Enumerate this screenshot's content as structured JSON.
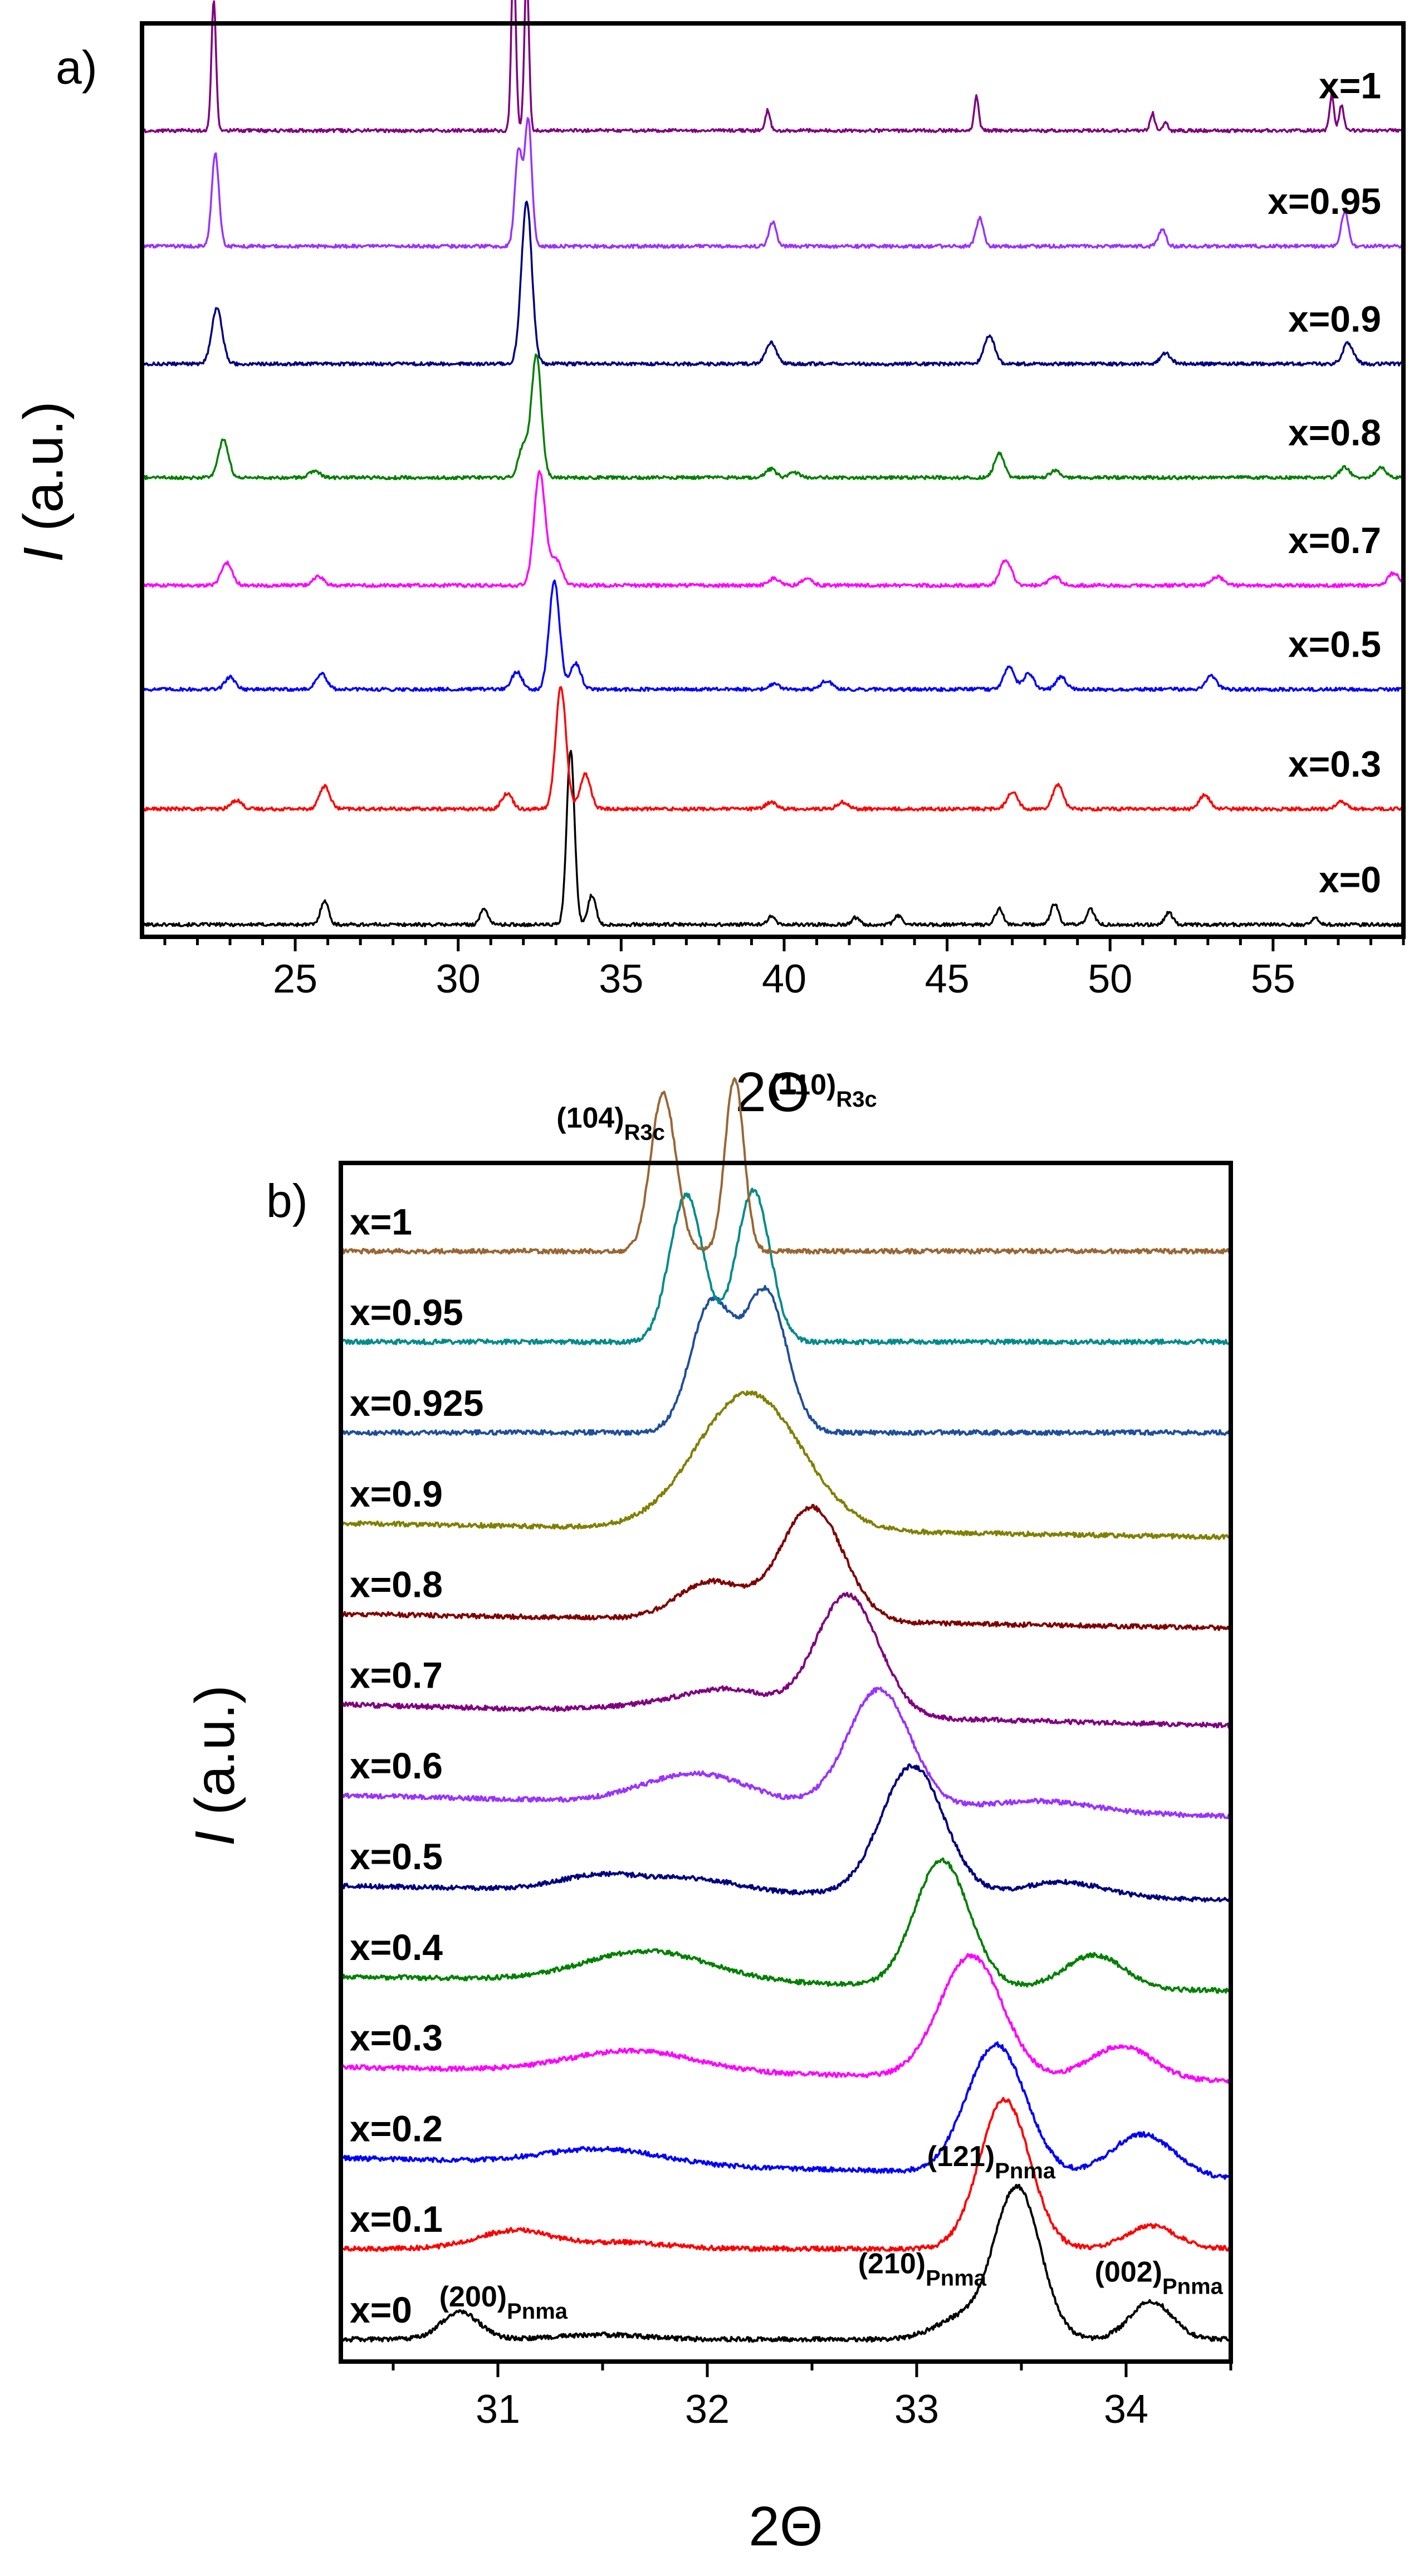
{
  "chart_data": [
    {
      "panel": "a)",
      "type": "line",
      "xlabel": "2Θ",
      "ylabel": "I (a.u.)",
      "xlim": [
        20.3,
        59.0
      ],
      "x_ticks": [
        25,
        30,
        35,
        40,
        45,
        50,
        55
      ],
      "stacked": true,
      "series": [
        {
          "name": "x=0",
          "color": "#000000",
          "offset": 0.0,
          "peaks": [
            [
              25.9,
              0.14
            ],
            [
              30.8,
              0.09
            ],
            [
              33.45,
              1.0
            ],
            [
              34.1,
              0.17
            ],
            [
              39.6,
              0.045
            ],
            [
              42.2,
              0.04
            ],
            [
              43.5,
              0.05
            ],
            [
              46.6,
              0.09
            ],
            [
              48.3,
              0.12
            ],
            [
              49.4,
              0.09
            ],
            [
              51.8,
              0.07
            ],
            [
              56.3,
              0.04
            ]
          ],
          "width": 0.12
        },
        {
          "name": "x=0.3",
          "color": "#ff0000",
          "offset": 1.18,
          "peaks": [
            [
              23.2,
              0.05
            ],
            [
              25.9,
              0.13
            ],
            [
              31.5,
              0.09
            ],
            [
              33.15,
              0.7
            ],
            [
              33.9,
              0.2
            ],
            [
              39.6,
              0.04
            ],
            [
              41.8,
              0.04
            ],
            [
              47.0,
              0.1
            ],
            [
              48.4,
              0.14
            ],
            [
              52.9,
              0.08
            ],
            [
              57.1,
              0.04
            ]
          ],
          "width": 0.16
        },
        {
          "name": "x=0.5",
          "color": "#0000ff",
          "offset": 2.4,
          "peaks": [
            [
              23.0,
              0.07
            ],
            [
              25.8,
              0.09
            ],
            [
              31.8,
              0.1
            ],
            [
              32.95,
              0.62
            ],
            [
              33.6,
              0.15
            ],
            [
              39.7,
              0.03
            ],
            [
              41.3,
              0.05
            ],
            [
              46.9,
              0.13
            ],
            [
              47.5,
              0.09
            ],
            [
              48.5,
              0.07
            ],
            [
              53.1,
              0.08
            ]
          ],
          "width": 0.16
        },
        {
          "name": "x=0.7",
          "color": "#ff00ff",
          "offset": 3.46,
          "peaks": [
            [
              22.9,
              0.13
            ],
            [
              25.7,
              0.05
            ],
            [
              32.5,
              0.65
            ],
            [
              33.0,
              0.15
            ],
            [
              39.7,
              0.04
            ],
            [
              40.7,
              0.04
            ],
            [
              46.8,
              0.15
            ],
            [
              48.3,
              0.05
            ],
            [
              53.3,
              0.05
            ],
            [
              58.7,
              0.07
            ]
          ],
          "width": 0.17
        },
        {
          "name": "x=0.8",
          "color": "#008000",
          "offset": 4.56,
          "peaks": [
            [
              22.8,
              0.22
            ],
            [
              25.6,
              0.04
            ],
            [
              32.0,
              0.18
            ],
            [
              32.4,
              0.7
            ],
            [
              39.6,
              0.05
            ],
            [
              40.3,
              0.03
            ],
            [
              46.6,
              0.14
            ],
            [
              48.3,
              0.04
            ],
            [
              57.2,
              0.06
            ],
            [
              58.3,
              0.06
            ]
          ],
          "width": 0.15
        },
        {
          "name": "x=0.9",
          "color": "#000080",
          "offset": 5.72,
          "peaks": [
            [
              22.6,
              0.32
            ],
            [
              32.1,
              0.93
            ],
            [
              39.6,
              0.12
            ],
            [
              46.3,
              0.16
            ],
            [
              51.7,
              0.06
            ],
            [
              57.3,
              0.12
            ]
          ],
          "width": 0.16
        },
        {
          "name": "x=0.95",
          "color": "#9933ff",
          "offset": 6.92,
          "peaks": [
            [
              22.55,
              0.53
            ],
            [
              31.85,
              0.55
            ],
            [
              32.15,
              0.72
            ],
            [
              39.65,
              0.14
            ],
            [
              46.0,
              0.16
            ],
            [
              51.6,
              0.1
            ],
            [
              57.2,
              0.2
            ]
          ],
          "width": 0.11
        },
        {
          "name": "x=1",
          "color": "#800080",
          "offset": 8.1,
          "peaks": [
            [
              22.5,
              0.75
            ],
            [
              31.7,
              1.0
            ],
            [
              32.1,
              0.9
            ],
            [
              39.5,
              0.12
            ],
            [
              45.9,
              0.2
            ],
            [
              51.3,
              0.1
            ],
            [
              51.7,
              0.05
            ],
            [
              56.8,
              0.2
            ],
            [
              57.1,
              0.15
            ]
          ],
          "width": 0.07
        }
      ]
    },
    {
      "panel": "b)",
      "type": "line",
      "xlabel": "2Θ",
      "ylabel": "I (a.u.)",
      "xlim": [
        30.25,
        34.5
      ],
      "x_ticks": [
        31,
        32,
        33,
        34
      ],
      "stacked": true,
      "annotations": [
        {
          "main": "(104)",
          "sub": "R3c",
          "x": 31.28,
          "y": 7.35
        },
        {
          "main": "(110)",
          "sub": "R3c",
          "x": 32.3,
          "y": 7.55
        },
        {
          "main": "(121)",
          "sub": "Pnma",
          "x": 33.05,
          "y": 1.05
        },
        {
          "main": "(200)",
          "sub": "Pnma",
          "x": 30.72,
          "y": 0.2
        },
        {
          "main": "(210)",
          "sub": "Pnma",
          "x": 32.72,
          "y": 0.4
        },
        {
          "main": "(002)",
          "sub": "Pnma",
          "x": 33.85,
          "y": 0.35
        }
      ],
      "series": [
        {
          "name": "x=0",
          "color": "#000000",
          "offset": 0.0,
          "peaks": [
            [
              30.82,
              0.18,
              0.09
            ],
            [
              31.5,
              0.03,
              0.2
            ],
            [
              33.2,
              0.13,
              0.12
            ],
            [
              33.48,
              1.0,
              0.11
            ],
            [
              34.12,
              0.25,
              0.1
            ]
          ],
          "base_slope": 0.0
        },
        {
          "name": "x=0.1",
          "color": "#ff0000",
          "offset": 0.55,
          "peaks": [
            [
              31.08,
              0.12,
              0.18
            ],
            [
              31.6,
              0.04,
              0.2
            ],
            [
              33.42,
              0.98,
              0.12
            ],
            [
              34.12,
              0.15,
              0.12
            ]
          ],
          "base_slope": 0.0
        },
        {
          "name": "x=0.2",
          "color": "#0000ff",
          "offset": 1.1,
          "peaks": [
            [
              31.5,
              0.1,
              0.28
            ],
            [
              33.38,
              0.85,
              0.14
            ],
            [
              34.08,
              0.28,
              0.15
            ]
          ],
          "base_slope": -0.03
        },
        {
          "name": "x=0.3",
          "color": "#ff00ff",
          "offset": 1.65,
          "peaks": [
            [
              31.65,
              0.14,
              0.3
            ],
            [
              33.26,
              0.8,
              0.15
            ],
            [
              33.98,
              0.22,
              0.15
            ]
          ],
          "base_slope": -0.02
        },
        {
          "name": "x=0.4",
          "color": "#008000",
          "offset": 2.2,
          "peaks": [
            [
              31.72,
              0.2,
              0.3
            ],
            [
              33.12,
              0.83,
              0.13
            ],
            [
              33.85,
              0.22,
              0.14
            ]
          ],
          "base_slope": -0.02
        },
        {
          "name": "x=0.5",
          "color": "#000080",
          "offset": 2.75,
          "peaks": [
            [
              31.5,
              0.1,
              0.2
            ],
            [
              31.95,
              0.08,
              0.2
            ],
            [
              32.98,
              0.85,
              0.15
            ],
            [
              33.7,
              0.1,
              0.2
            ]
          ],
          "base_slope": -0.02
        },
        {
          "name": "x=0.6",
          "color": "#9933ff",
          "offset": 3.3,
          "peaks": [
            [
              31.95,
              0.2,
              0.25
            ],
            [
              32.82,
              0.78,
              0.15
            ],
            [
              33.6,
              0.07,
              0.25
            ]
          ],
          "base_slope": -0.03
        },
        {
          "name": "x=0.7",
          "color": "#800080",
          "offset": 3.85,
          "peaks": [
            [
              31.8,
              0.05,
              0.25
            ],
            [
              32.12,
              0.14,
              0.2
            ],
            [
              32.67,
              0.8,
              0.15
            ]
          ],
          "base_slope": -0.03
        },
        {
          "name": "x=0.8",
          "color": "#800000",
          "offset": 4.4,
          "peaks": [
            [
              32.02,
              0.25,
              0.16
            ],
            [
              32.5,
              0.75,
              0.15
            ]
          ],
          "base_slope": -0.02
        },
        {
          "name": "x=0.9",
          "color": "#808000",
          "offset": 4.95,
          "peaks": [
            [
              32.2,
              0.9,
              0.25
            ]
          ],
          "base_slope": -0.02
        },
        {
          "name": "x=0.925",
          "color": "#1f4e9b",
          "offset": 5.5,
          "peaks": [
            [
              32.02,
              0.85,
              0.1
            ],
            [
              32.28,
              0.92,
              0.1
            ]
          ],
          "base_slope": 0.0
        },
        {
          "name": "x=0.95",
          "color": "#008b8b",
          "offset": 6.05,
          "peaks": [
            [
              31.9,
              0.97,
              0.08
            ],
            [
              32.22,
              1.0,
              0.08
            ]
          ],
          "base_slope": 0.0
        },
        {
          "name": "x=1",
          "color": "#996633",
          "offset": 6.6,
          "peaks": [
            [
              31.79,
              1.04,
              0.06
            ],
            [
              32.13,
              1.14,
              0.045
            ]
          ],
          "base_slope": 0.0
        }
      ]
    }
  ]
}
